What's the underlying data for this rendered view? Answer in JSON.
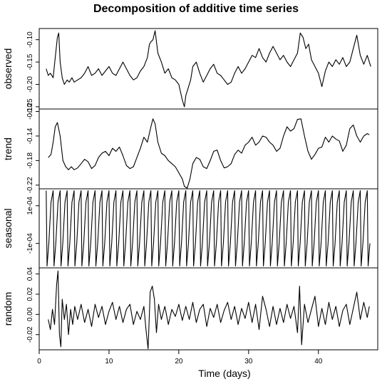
{
  "chart_data": {
    "type": "line",
    "title": "Decomposition of additive time series",
    "xlabel": "Time (days)",
    "xlim": [
      0,
      48.5
    ],
    "x_ticks": [
      0,
      10,
      20,
      30,
      40
    ],
    "x_tick_labels": [
      "0",
      "10",
      "20",
      "30",
      "40"
    ],
    "grid": false,
    "line_color": "#000000",
    "panels": [
      {
        "name": "observed",
        "ylabel": "observed",
        "ylim": [
          -0.255,
          -0.075
        ],
        "y_ticks": [
          -0.1,
          -0.15,
          -0.2,
          -0.25
        ],
        "y_tick_labels": [
          "-0.10",
          "-0.15",
          "-0.20",
          "-0.25"
        ],
        "x": [
          1.0,
          1.3,
          1.6,
          2.0,
          2.3,
          2.6,
          2.8,
          3.0,
          3.3,
          3.6,
          4.0,
          4.3,
          4.7,
          5.0,
          5.5,
          6.0,
          6.5,
          7.0,
          7.5,
          8.0,
          8.5,
          9.0,
          9.5,
          10.0,
          10.5,
          11.0,
          11.5,
          12.0,
          12.5,
          13.0,
          13.5,
          14.0,
          14.5,
          15.0,
          15.5,
          15.8,
          16.0,
          16.3,
          16.6,
          17.0,
          17.5,
          18.0,
          18.5,
          19.0,
          19.5,
          20.0,
          20.5,
          20.8,
          21.0,
          21.3,
          21.7,
          22.0,
          22.5,
          23.0,
          23.5,
          24.0,
          24.5,
          25.0,
          25.5,
          26.0,
          26.5,
          27.0,
          27.5,
          28.0,
          28.5,
          29.0,
          29.5,
          30.0,
          30.5,
          31.0,
          31.5,
          32.0,
          32.5,
          33.0,
          33.5,
          34.0,
          34.5,
          35.0,
          35.5,
          36.0,
          36.5,
          37.0,
          37.4,
          37.8,
          38.2,
          38.6,
          39.0,
          39.5,
          40.0,
          40.5,
          41.0,
          41.5,
          42.0,
          42.5,
          43.0,
          43.5,
          44.0,
          44.5,
          45.0,
          45.5,
          46.0,
          46.5,
          47.0,
          47.5
        ],
        "y": [
          -0.165,
          -0.18,
          -0.175,
          -0.185,
          -0.14,
          -0.095,
          -0.085,
          -0.15,
          -0.185,
          -0.2,
          -0.19,
          -0.195,
          -0.185,
          -0.195,
          -0.19,
          -0.185,
          -0.175,
          -0.16,
          -0.18,
          -0.175,
          -0.165,
          -0.18,
          -0.17,
          -0.16,
          -0.175,
          -0.18,
          -0.165,
          -0.15,
          -0.165,
          -0.18,
          -0.19,
          -0.185,
          -0.17,
          -0.16,
          -0.14,
          -0.11,
          -0.105,
          -0.1,
          -0.08,
          -0.13,
          -0.15,
          -0.175,
          -0.165,
          -0.185,
          -0.19,
          -0.2,
          -0.235,
          -0.25,
          -0.225,
          -0.21,
          -0.19,
          -0.16,
          -0.15,
          -0.175,
          -0.195,
          -0.18,
          -0.165,
          -0.155,
          -0.175,
          -0.18,
          -0.19,
          -0.2,
          -0.195,
          -0.175,
          -0.16,
          -0.175,
          -0.165,
          -0.15,
          -0.135,
          -0.14,
          -0.12,
          -0.14,
          -0.15,
          -0.13,
          -0.115,
          -0.13,
          -0.145,
          -0.135,
          -0.15,
          -0.16,
          -0.145,
          -0.13,
          -0.085,
          -0.095,
          -0.12,
          -0.11,
          -0.145,
          -0.16,
          -0.175,
          -0.205,
          -0.17,
          -0.15,
          -0.16,
          -0.145,
          -0.155,
          -0.14,
          -0.16,
          -0.15,
          -0.12,
          -0.09,
          -0.135,
          -0.155,
          -0.135,
          -0.16
        ]
      },
      {
        "name": "trend",
        "ylabel": "trend",
        "ylim": [
          -0.226,
          -0.096
        ],
        "y_ticks": [
          -0.1,
          -0.14,
          -0.18,
          -0.22
        ],
        "y_tick_labels": [
          "-0.10",
          "-0.14",
          "-0.18",
          "-0.22"
        ],
        "x": [
          1.3,
          1.7,
          2.0,
          2.3,
          2.6,
          3.0,
          3.4,
          3.8,
          4.2,
          4.6,
          5.0,
          5.5,
          6.0,
          6.5,
          7.0,
          7.5,
          8.0,
          8.5,
          9.0,
          9.5,
          10.0,
          10.5,
          11.0,
          11.5,
          12.0,
          12.5,
          13.0,
          13.5,
          14.0,
          14.5,
          15.0,
          15.5,
          16.0,
          16.3,
          16.6,
          17.0,
          17.5,
          18.0,
          18.5,
          19.0,
          19.5,
          20.0,
          20.5,
          20.8,
          21.2,
          21.6,
          22.0,
          22.5,
          23.0,
          23.5,
          24.0,
          24.5,
          25.0,
          25.5,
          26.0,
          26.5,
          27.0,
          27.5,
          28.0,
          28.5,
          29.0,
          29.5,
          30.0,
          30.5,
          31.0,
          31.5,
          32.0,
          32.5,
          33.0,
          33.5,
          34.0,
          34.5,
          35.0,
          35.5,
          36.0,
          36.5,
          37.0,
          37.5,
          38.0,
          38.5,
          39.0,
          39.5,
          40.0,
          40.5,
          41.0,
          41.5,
          42.0,
          42.5,
          43.0,
          43.5,
          44.0,
          44.5,
          45.0,
          45.5,
          46.0,
          46.5,
          47.0,
          47.3
        ],
        "y": [
          -0.175,
          -0.17,
          -0.15,
          -0.125,
          -0.118,
          -0.14,
          -0.18,
          -0.19,
          -0.195,
          -0.19,
          -0.195,
          -0.192,
          -0.185,
          -0.178,
          -0.182,
          -0.193,
          -0.188,
          -0.175,
          -0.168,
          -0.165,
          -0.172,
          -0.16,
          -0.165,
          -0.158,
          -0.172,
          -0.188,
          -0.193,
          -0.19,
          -0.175,
          -0.16,
          -0.142,
          -0.15,
          -0.125,
          -0.112,
          -0.12,
          -0.15,
          -0.168,
          -0.172,
          -0.18,
          -0.185,
          -0.19,
          -0.2,
          -0.21,
          -0.222,
          -0.225,
          -0.21,
          -0.185,
          -0.175,
          -0.178,
          -0.19,
          -0.193,
          -0.18,
          -0.165,
          -0.163,
          -0.18,
          -0.192,
          -0.19,
          -0.185,
          -0.17,
          -0.163,
          -0.168,
          -0.155,
          -0.15,
          -0.142,
          -0.155,
          -0.15,
          -0.14,
          -0.142,
          -0.15,
          -0.155,
          -0.165,
          -0.16,
          -0.14,
          -0.125,
          -0.132,
          -0.128,
          -0.113,
          -0.112,
          -0.14,
          -0.165,
          -0.178,
          -0.17,
          -0.16,
          -0.158,
          -0.142,
          -0.15,
          -0.14,
          -0.145,
          -0.148,
          -0.165,
          -0.155,
          -0.128,
          -0.122,
          -0.14,
          -0.15,
          -0.14,
          -0.136,
          -0.138
        ]
      },
      {
        "name": "seasonal",
        "ylabel": "seasonal",
        "ylim": [
          -0.00023,
          0.00019
        ],
        "y_ticks": [
          0.0001,
          -0.0001
        ],
        "y_tick_labels": [
          "1e-04",
          "-1e-04"
        ],
        "period": 1.0,
        "cycle_start": 1.0,
        "cycle_end": 47.5,
        "cycle_profile": [
          0.00018,
          -0.00022,
          -0.0001,
          0.00012,
          0.00018
        ],
        "cycle_phase": [
          0.0,
          0.12,
          0.38,
          0.7,
          1.0
        ]
      },
      {
        "name": "random",
        "ylabel": "random",
        "ylim": [
          -0.035,
          0.046
        ],
        "y_ticks": [
          0.04,
          0.02,
          0.0,
          -0.02
        ],
        "y_tick_labels": [
          "0.04",
          "0.02",
          "0.00",
          "-0.02"
        ],
        "x": [
          1.3,
          1.6,
          1.9,
          2.2,
          2.5,
          2.7,
          2.9,
          3.1,
          3.3,
          3.6,
          3.9,
          4.2,
          4.5,
          4.8,
          5.1,
          5.5,
          6.0,
          6.5,
          7.0,
          7.5,
          8.0,
          8.5,
          9.0,
          9.5,
          10.0,
          10.5,
          11.0,
          11.5,
          12.0,
          12.5,
          13.0,
          13.5,
          14.0,
          14.5,
          15.0,
          15.3,
          15.6,
          15.9,
          16.2,
          16.5,
          16.8,
          17.1,
          17.5,
          18.0,
          18.5,
          19.0,
          19.5,
          20.0,
          20.5,
          21.0,
          21.5,
          22.0,
          22.5,
          23.0,
          23.5,
          24.0,
          24.5,
          25.0,
          25.5,
          26.0,
          26.5,
          27.0,
          27.5,
          28.0,
          28.5,
          29.0,
          29.5,
          30.0,
          30.5,
          31.0,
          31.5,
          32.0,
          32.5,
          33.0,
          33.5,
          34.0,
          34.5,
          35.0,
          35.5,
          36.0,
          36.5,
          37.0,
          37.3,
          37.6,
          38.0,
          38.5,
          39.0,
          39.5,
          40.0,
          40.5,
          41.0,
          41.5,
          42.0,
          42.5,
          43.0,
          43.5,
          44.0,
          44.5,
          45.0,
          45.5,
          46.0,
          46.5,
          47.0,
          47.3
        ],
        "y": [
          -0.005,
          -0.015,
          0.005,
          -0.01,
          0.03,
          0.043,
          -0.02,
          -0.032,
          0.015,
          -0.005,
          0.01,
          -0.02,
          0.005,
          -0.01,
          0.008,
          -0.005,
          0.01,
          -0.008,
          0.005,
          -0.012,
          0.01,
          -0.003,
          0.008,
          -0.01,
          0.003,
          0.012,
          -0.005,
          0.008,
          -0.008,
          0.005,
          0.01,
          -0.01,
          0.003,
          -0.005,
          0.008,
          -0.015,
          -0.034,
          0.022,
          0.028,
          0.015,
          -0.018,
          0.01,
          -0.005,
          0.008,
          -0.01,
          0.005,
          -0.002,
          0.01,
          -0.006,
          0.008,
          -0.005,
          0.012,
          -0.008,
          0.005,
          0.01,
          -0.012,
          0.006,
          -0.003,
          0.01,
          -0.008,
          0.004,
          0.012,
          -0.005,
          0.008,
          -0.01,
          0.006,
          -0.004,
          0.012,
          -0.008,
          0.01,
          -0.015,
          0.018,
          0.005,
          -0.012,
          0.008,
          -0.01,
          0.006,
          -0.008,
          0.01,
          -0.004,
          0.008,
          -0.018,
          0.028,
          -0.03,
          0.01,
          -0.008,
          0.005,
          0.018,
          -0.012,
          0.006,
          -0.01,
          0.012,
          -0.005,
          0.008,
          -0.012,
          0.004,
          0.01,
          -0.01,
          0.006,
          0.022,
          -0.005,
          0.012,
          -0.003,
          0.008
        ]
      }
    ]
  }
}
